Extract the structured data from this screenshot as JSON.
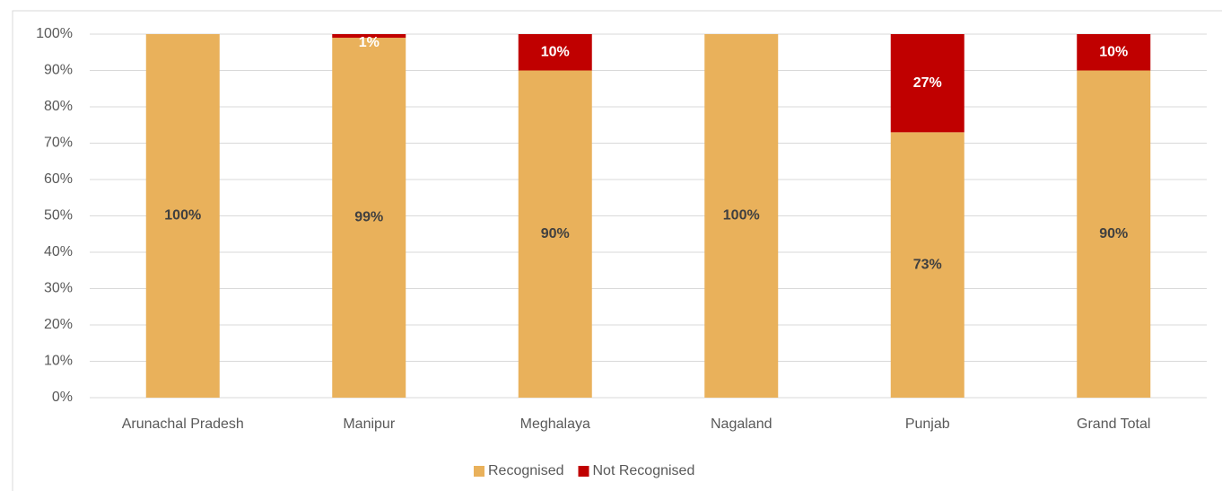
{
  "chart_data": {
    "type": "stacked_bar",
    "categories": [
      "Arunachal Pradesh",
      "Manipur",
      "Meghalaya",
      "Nagaland",
      "Punjab",
      "Grand Total"
    ],
    "series": [
      {
        "name": "Recognised",
        "color": "#E9B15B",
        "values": [
          100,
          99,
          90,
          100,
          73,
          90
        ],
        "value_labels": [
          "100%",
          "99%",
          "90%",
          "100%",
          "73%",
          "90%"
        ]
      },
      {
        "name": "Not Recognised",
        "color": "#C00000",
        "values": [
          0,
          1,
          10,
          0,
          27,
          10
        ],
        "value_labels": [
          null,
          "1%",
          "10%",
          null,
          "27%",
          "10%"
        ]
      }
    ],
    "ylim": [
      0,
      100
    ],
    "yticks": [
      {
        "value": 0,
        "label": "0%"
      },
      {
        "value": 10,
        "label": "10%"
      },
      {
        "value": 20,
        "label": "20%"
      },
      {
        "value": 30,
        "label": "30%"
      },
      {
        "value": 40,
        "label": "40%"
      },
      {
        "value": 50,
        "label": "50%"
      },
      {
        "value": 60,
        "label": "60%"
      },
      {
        "value": 70,
        "label": "70%"
      },
      {
        "value": 80,
        "label": "80%"
      },
      {
        "value": 90,
        "label": "90%"
      },
      {
        "value": 100,
        "label": "100%"
      }
    ],
    "grid": true,
    "legend": "bottom"
  }
}
